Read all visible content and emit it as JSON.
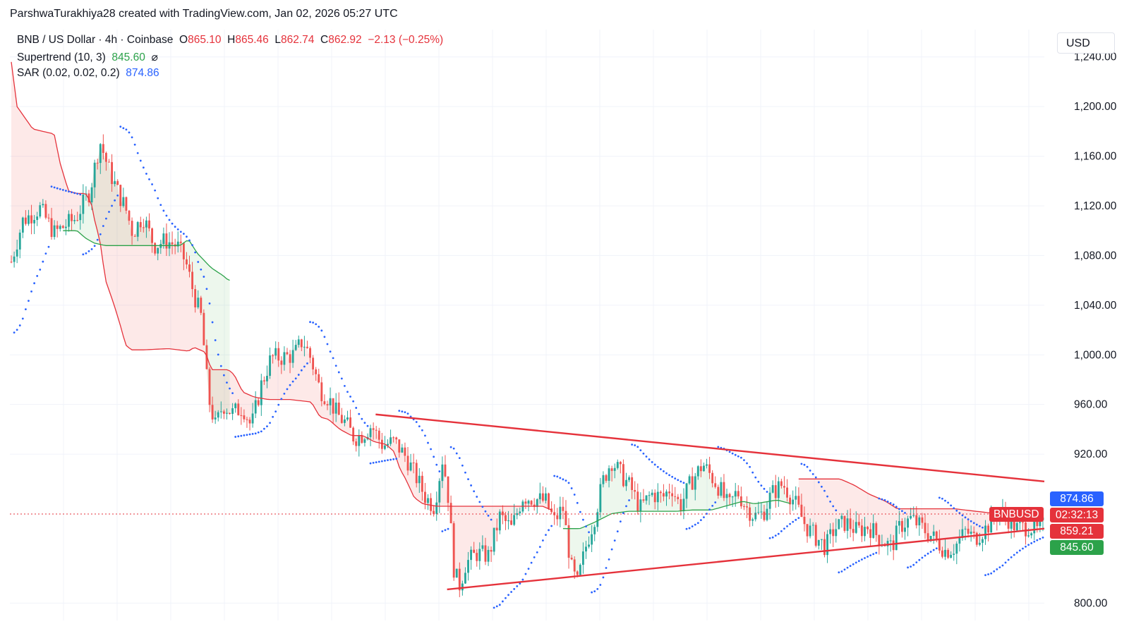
{
  "credit": "ParshwaTurakhiya28 created with TradingView.com, Jan 02, 2026 05:27 UTC",
  "legend": {
    "symbol": "BNB / US Dollar · 4h · Coinbase",
    "o_label": "O",
    "o_value": "865.10",
    "h_label": "H",
    "h_value": "865.46",
    "l_label": "L",
    "l_value": "862.74",
    "c_label": "C",
    "c_value": "862.92",
    "change": "−2.13 (−0.25%)",
    "supertrend_label": "Supertrend (10, 3)",
    "supertrend_value": "845.60",
    "supertrend_icon": "⌀",
    "sar_label": "SAR (0.02, 0.02, 0.2)",
    "sar_value": "874.86"
  },
  "currency_button": "USD",
  "price_tags": {
    "symbol": "BNBUSD",
    "sar": "874.86",
    "countdown": "02:32:13",
    "close_red": "859.21",
    "supertrend": "845.60"
  },
  "colors": {
    "up": "#26a69a",
    "down": "#ef5350",
    "sar": "#2962ff",
    "supertrend_up": "#2ca24a",
    "supertrend_down": "#e5323b",
    "trendline": "#e5323b"
  },
  "chart_data": {
    "type": "candlestick",
    "timeframe": "4h",
    "ylim": [
      786,
      1262
    ],
    "y_ticks": [
      800,
      920,
      960,
      1000,
      1040,
      1080,
      1120,
      1160,
      1200,
      1240
    ],
    "y_tick_labels": [
      "800.00",
      "920.00",
      "960.00",
      "1,000.00",
      "1,040.00",
      "1,080.00",
      "1,120.00",
      "1,160.00",
      "1,200.00",
      "1,240.00"
    ],
    "n_bars": 360,
    "close_path": [
      [
        0,
        1075
      ],
      [
        8,
        1108
      ],
      [
        20,
        1118
      ],
      [
        30,
        1098
      ],
      [
        45,
        1110
      ],
      [
        55,
        1132
      ],
      [
        62,
        1172
      ],
      [
        68,
        1150
      ],
      [
        75,
        1130
      ],
      [
        80,
        1118
      ],
      [
        85,
        1098
      ],
      [
        92,
        1112
      ],
      [
        100,
        1088
      ],
      [
        108,
        1092
      ],
      [
        116,
        1088
      ],
      [
        122,
        1075
      ],
      [
        128,
        1048
      ],
      [
        133,
        1030
      ],
      [
        138,
        965
      ],
      [
        143,
        942
      ],
      [
        148,
        960
      ],
      [
        155,
        953
      ],
      [
        162,
        958
      ],
      [
        168,
        942
      ],
      [
        175,
        976
      ],
      [
        182,
        998
      ],
      [
        190,
        998
      ],
      [
        198,
        1000
      ],
      [
        204,
        1012
      ],
      [
        210,
        996
      ],
      [
        216,
        972
      ],
      [
        222,
        965
      ],
      [
        228,
        952
      ],
      [
        234,
        945
      ],
      [
        240,
        933
      ],
      [
        246,
        936
      ],
      [
        252,
        943
      ],
      [
        260,
        927
      ],
      [
        268,
        930
      ],
      [
        276,
        918
      ],
      [
        284,
        900
      ],
      [
        290,
        885
      ],
      [
        296,
        878
      ],
      [
        302,
        918
      ],
      [
        306,
        884
      ],
      [
        310,
        824
      ],
      [
        314,
        814
      ],
      [
        318,
        832
      ],
      [
        326,
        840
      ],
      [
        334,
        838
      ],
      [
        342,
        870
      ],
      [
        350,
        860
      ],
      [
        358,
        886
      ],
      [
        366,
        884
      ],
      [
        374,
        882
      ],
      [
        380,
        866
      ],
      [
        386,
        877
      ],
      [
        392,
        828
      ],
      [
        396,
        815
      ],
      [
        402,
        845
      ],
      [
        408,
        868
      ],
      [
        414,
        898
      ],
      [
        420,
        915
      ],
      [
        426,
        905
      ],
      [
        434,
        892
      ],
      [
        440,
        876
      ],
      [
        448,
        888
      ],
      [
        456,
        885
      ],
      [
        462,
        894
      ],
      [
        468,
        878
      ],
      [
        476,
        898
      ],
      [
        484,
        912
      ],
      [
        490,
        902
      ],
      [
        496,
        892
      ],
      [
        502,
        877
      ],
      [
        508,
        890
      ],
      [
        514,
        878
      ],
      [
        520,
        870
      ],
      [
        526,
        872
      ],
      [
        532,
        888
      ],
      [
        540,
        896
      ],
      [
        548,
        882
      ],
      [
        556,
        862
      ],
      [
        564,
        852
      ],
      [
        570,
        845
      ],
      [
        576,
        860
      ],
      [
        584,
        865
      ],
      [
        592,
        858
      ],
      [
        600,
        862
      ],
      [
        608,
        852
      ],
      [
        616,
        845
      ],
      [
        622,
        862
      ],
      [
        630,
        868
      ],
      [
        638,
        860
      ],
      [
        646,
        852
      ],
      [
        654,
        842
      ],
      [
        660,
        845
      ],
      [
        668,
        858
      ],
      [
        674,
        852
      ],
      [
        682,
        860
      ],
      [
        690,
        872
      ],
      [
        696,
        870
      ],
      [
        704,
        860
      ],
      [
        712,
        862
      ],
      [
        718,
        858
      ],
      [
        722,
        862
      ]
    ],
    "supertrend_segments": [
      {
        "trend": "down",
        "points": [
          [
            0,
            1236
          ],
          [
            4,
            1200
          ],
          [
            15,
            1182
          ],
          [
            22,
            1180
          ],
          [
            30,
            1178
          ],
          [
            34,
            1155
          ],
          [
            40,
            1132
          ],
          [
            46,
            1130
          ],
          [
            52,
            1130
          ],
          [
            56,
            1122
          ],
          [
            58,
            1110
          ],
          [
            62,
            1092
          ],
          [
            66,
            1060
          ],
          [
            72,
            1040
          ],
          [
            76,
            1025
          ],
          [
            80,
            1008
          ],
          [
            84,
            1004
          ],
          [
            92,
            1004
          ],
          [
            110,
            1005
          ],
          [
            124,
            1003
          ],
          [
            128,
            1006
          ],
          [
            136,
            1002
          ],
          [
            140,
            988
          ],
          [
            152,
            988
          ],
          [
            156,
            984
          ],
          [
            162,
            970
          ],
          [
            170,
            966
          ],
          [
            180,
            964
          ],
          [
            195,
            964
          ],
          [
            210,
            962
          ],
          [
            216,
            950
          ],
          [
            222,
            948
          ],
          [
            230,
            940
          ],
          [
            238,
            935
          ],
          [
            246,
            935
          ],
          [
            254,
            930
          ],
          [
            262,
            928
          ],
          [
            268,
            922
          ],
          [
            272,
            908
          ],
          [
            276,
            900
          ],
          [
            282,
            885
          ],
          [
            288,
            880
          ],
          [
            298,
            878
          ],
          [
            306,
            878
          ],
          [
            312,
            878
          ],
          [
            330,
            878
          ],
          [
            360,
            878
          ],
          [
            372,
            878
          ],
          [
            378,
            875
          ]
        ]
      },
      {
        "trend": "up",
        "points": [
          [
            386,
            860
          ],
          [
            398,
            860
          ],
          [
            408,
            865
          ],
          [
            420,
            872
          ],
          [
            432,
            874
          ],
          [
            448,
            874
          ],
          [
            466,
            874
          ],
          [
            476,
            875
          ],
          [
            490,
            875
          ],
          [
            512,
            882
          ],
          [
            520,
            880
          ],
          [
            536,
            883
          ],
          [
            546,
            880
          ]
        ]
      },
      {
        "trend": "down",
        "points": [
          [
            552,
            900
          ],
          [
            566,
            900
          ],
          [
            580,
            900
          ],
          [
            590,
            895
          ],
          [
            600,
            888
          ],
          [
            612,
            882
          ],
          [
            620,
            876
          ],
          [
            640,
            876
          ],
          [
            660,
            876
          ],
          [
            690,
            872
          ],
          [
            706,
            872
          ],
          [
            714,
            870
          ],
          [
            722,
            868
          ]
        ]
      },
      {
        "trend": "up",
        "points": [
          [
            36,
            1100
          ],
          [
            46,
            1100
          ],
          [
            52,
            1094
          ],
          [
            58,
            1090
          ],
          [
            66,
            1088
          ],
          [
            76,
            1088
          ],
          [
            88,
            1088
          ],
          [
            98,
            1088
          ],
          [
            108,
            1088
          ],
          [
            118,
            1088
          ],
          [
            124,
            1093
          ],
          [
            130,
            1082
          ],
          [
            140,
            1070
          ],
          [
            148,
            1064
          ],
          [
            152,
            1060
          ]
        ]
      }
    ],
    "trendlines": [
      {
        "name": "upper",
        "from": [
          255,
          952
        ],
        "to": [
          800,
          898
        ]
      },
      {
        "name": "lower",
        "from": [
          305,
          811
        ],
        "to": [
          800,
          860
        ]
      }
    ],
    "last_close": 862.92
  }
}
